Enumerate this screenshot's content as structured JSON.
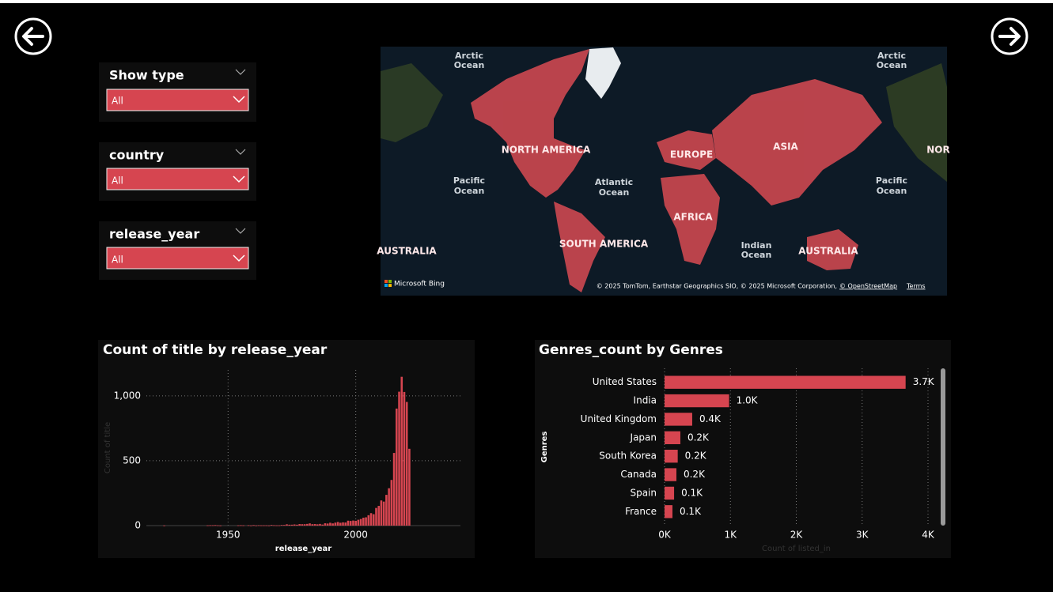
{
  "slicers": [
    {
      "title": "Show type",
      "value": "All"
    },
    {
      "title": "country",
      "value": "All"
    },
    {
      "title": "release_year",
      "value": "All"
    }
  ],
  "map": {
    "labels": [
      "Arctic",
      "Ocean",
      "Arctic",
      "Ocean",
      "NORTH AMERICA",
      "EUROPE",
      "ASIA",
      "NOR",
      "Pacific",
      "Ocean",
      "Atlantic",
      "Ocean",
      "Pacific",
      "Ocean",
      "AFRICA",
      "SOUTH AMERICA",
      "Indian",
      "Ocean",
      "AUSTRALIA",
      "AUSTRALIA"
    ],
    "provider": "Microsoft Bing",
    "attribution": "© 2025 TomTom, Earthstar Geographics SIO, © 2025 Microsoft Corporation,",
    "osm_link": "© OpenStreetMap",
    "terms": "Terms"
  },
  "chart_data": [
    {
      "type": "bar",
      "title": "Count of title by release_year",
      "x_label": "release_year",
      "y_label": "Count of title",
      "x": [
        1925,
        1942,
        1943,
        1944,
        1945,
        1946,
        1947,
        1954,
        1955,
        1956,
        1958,
        1959,
        1960,
        1961,
        1962,
        1963,
        1964,
        1965,
        1966,
        1967,
        1968,
        1969,
        1970,
        1971,
        1972,
        1973,
        1974,
        1975,
        1976,
        1977,
        1978,
        1979,
        1980,
        1981,
        1982,
        1983,
        1984,
        1985,
        1986,
        1987,
        1988,
        1989,
        1990,
        1991,
        1992,
        1993,
        1994,
        1995,
        1996,
        1997,
        1998,
        1999,
        2000,
        2001,
        2002,
        2003,
        2004,
        2005,
        2006,
        2007,
        2008,
        2009,
        2010,
        2011,
        2012,
        2013,
        2014,
        2015,
        2016,
        2017,
        2018,
        2019,
        2020,
        2021
      ],
      "values": [
        1,
        2,
        3,
        3,
        4,
        2,
        1,
        2,
        3,
        2,
        3,
        1,
        4,
        1,
        3,
        2,
        2,
        2,
        1,
        5,
        3,
        2,
        2,
        5,
        5,
        10,
        7,
        7,
        9,
        7,
        12,
        11,
        11,
        13,
        17,
        11,
        12,
        10,
        13,
        8,
        18,
        16,
        22,
        17,
        23,
        28,
        22,
        25,
        24,
        38,
        36,
        39,
        37,
        45,
        51,
        61,
        64,
        80,
        96,
        88,
        136,
        152,
        194,
        185,
        237,
        288,
        352,
        560,
        902,
        1032,
        1147,
        1030,
        953,
        592
      ],
      "color": "#d64550",
      "xlim": [
        1918,
        2041
      ],
      "ylim": [
        0,
        1200
      ],
      "xticks": [
        1950,
        2000
      ],
      "yticks": [
        0,
        500,
        {
          "value": 1000,
          "label": "1,000"
        }
      ],
      "grid": true
    },
    {
      "type": "hbar",
      "title": "Genres_count by Genres",
      "x_label": "Count of listed_in",
      "y_label": "Genres",
      "categories": [
        "United States",
        "India",
        "United Kingdom",
        "Japan",
        "South Korea",
        "Canada",
        "Spain",
        "France"
      ],
      "values": [
        3660,
        980,
        420,
        240,
        200,
        180,
        145,
        120
      ],
      "value_labels": [
        "3.7K",
        "1.0K",
        "0.4K",
        "0.2K",
        "0.2K",
        "0.2K",
        "0.1K",
        "0.1K"
      ],
      "color": "#d64550",
      "xlim": [
        0,
        4000
      ],
      "xticks": [
        {
          "value": 0,
          "label": "0K"
        },
        {
          "value": 1000,
          "label": "1K"
        },
        {
          "value": 2000,
          "label": "2K"
        },
        {
          "value": 3000,
          "label": "3K"
        },
        {
          "value": 4000,
          "label": "4K"
        }
      ],
      "grid": true
    }
  ]
}
